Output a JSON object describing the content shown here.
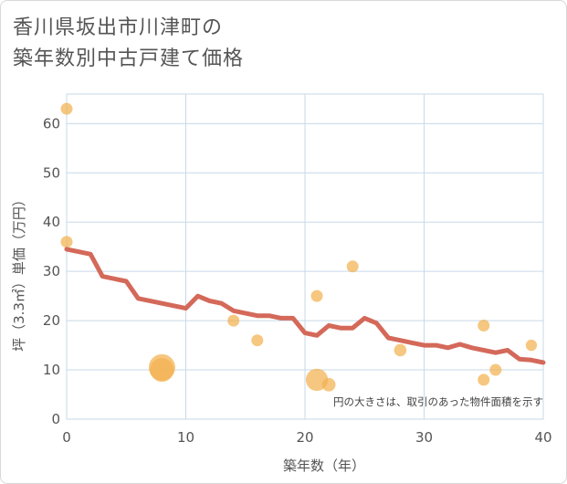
{
  "chart_data": {
    "type": "scatter",
    "title_lines": [
      "香川県坂出市川津町の",
      "築年数別中古戸建て価格"
    ],
    "xlabel": "築年数（年）",
    "ylabel": "坪（3.3㎡）単価（万円）",
    "xlim": [
      0,
      40
    ],
    "ylim": [
      0,
      66
    ],
    "x_ticks": [
      "0",
      "10",
      "20",
      "30",
      "40"
    ],
    "y_ticks": [
      "0",
      "10",
      "20",
      "30",
      "40",
      "50",
      "60"
    ],
    "grid": true,
    "note": "円の大きさは、取引のあった物件面積を示す",
    "colors": {
      "bubble": "#f2b24f",
      "trend": "#d4695a",
      "grid": "#c7d9ea"
    },
    "scatter_points": [
      {
        "x": 0,
        "y": 63,
        "size": 1
      },
      {
        "x": 0,
        "y": 36,
        "size": 1
      },
      {
        "x": 8,
        "y": 10.5,
        "size": 5
      },
      {
        "x": 8,
        "y": 10,
        "size": 4
      },
      {
        "x": 14,
        "y": 20,
        "size": 1
      },
      {
        "x": 16,
        "y": 16,
        "size": 1
      },
      {
        "x": 21,
        "y": 25,
        "size": 1
      },
      {
        "x": 21,
        "y": 8,
        "size": 3.5
      },
      {
        "x": 22,
        "y": 7,
        "size": 1.3
      },
      {
        "x": 24,
        "y": 31,
        "size": 1
      },
      {
        "x": 28,
        "y": 14,
        "size": 1.1
      },
      {
        "x": 35,
        "y": 19,
        "size": 1
      },
      {
        "x": 35,
        "y": 8,
        "size": 1
      },
      {
        "x": 36,
        "y": 10,
        "size": 1
      },
      {
        "x": 39,
        "y": 15,
        "size": 0.9
      }
    ],
    "trend_line": {
      "x": [
        0,
        2,
        3,
        5,
        6,
        10,
        11,
        12,
        13,
        14,
        16,
        17,
        18,
        19,
        20,
        21,
        22,
        23,
        24,
        25,
        26,
        27,
        28,
        29,
        30,
        31,
        32,
        33,
        34,
        35,
        36,
        37,
        38,
        39,
        40
      ],
      "y": [
        34.5,
        33.5,
        29,
        28,
        24.5,
        22.5,
        25,
        24,
        23.5,
        22,
        21,
        21,
        20.5,
        20.5,
        17.5,
        17,
        19,
        18.5,
        18.5,
        20.5,
        19.5,
        16.5,
        16,
        15.5,
        15,
        15,
        14.5,
        15.2,
        14.5,
        14,
        13.5,
        14,
        12.2,
        12,
        11.5
      ]
    }
  }
}
